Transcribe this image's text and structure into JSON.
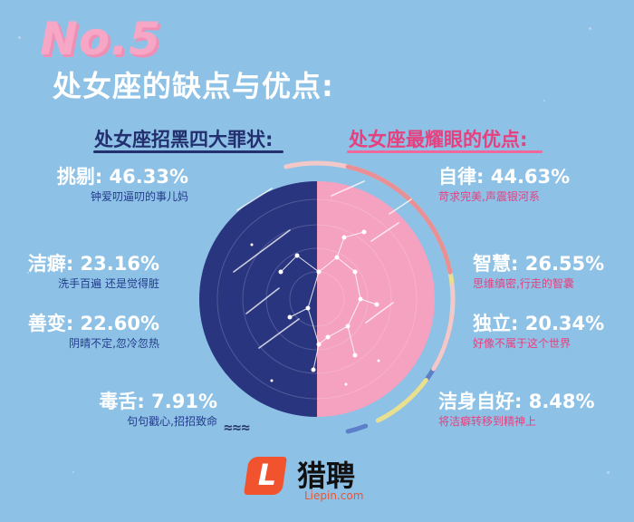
{
  "header": {
    "number": "No.5",
    "title": "处女座的缺点与优点:"
  },
  "sections": {
    "left_title": "处女座招黑四大罪状:",
    "right_title": "处女座最耀眼的优点:"
  },
  "chart_data": [
    {
      "type": "pie",
      "title": "处女座招黑四大罪状",
      "categories": [
        "挑剔",
        "洁癖",
        "善变",
        "毒舌"
      ],
      "values": [
        46.33,
        23.16,
        22.6,
        7.91
      ],
      "descriptions": [
        "钟爱叨逼叨的事儿妈",
        "洗手百遍 还是觉得脏",
        "阴晴不定,忽冷忽热",
        "句句戳心,招招致命"
      ],
      "value_labels": [
        "46.33%",
        "23.16%",
        "22.60%",
        "7.91%"
      ]
    },
    {
      "type": "pie",
      "title": "处女座最耀眼的优点",
      "categories": [
        "自律",
        "智慧",
        "独立",
        "洁身自好"
      ],
      "values": [
        44.63,
        26.55,
        20.34,
        8.48
      ],
      "descriptions": [
        "苛求完美,声震银河系",
        "思维缜密,行走的智囊",
        "好像不属于这个世界",
        "将洁癖转移到精神上"
      ],
      "value_labels": [
        "44.63%",
        "26.55%",
        "20.34%",
        "8.48%"
      ]
    }
  ],
  "colors": {
    "background": "#8ec1e6",
    "left_half": "#2a3580",
    "right_half": "#f5a1c0",
    "ring_segments": [
      "#e89095",
      "#f2c9c8",
      "#e8e090",
      "#5b7fc9",
      "#a9d9a0"
    ]
  },
  "logo": {
    "letter": "L",
    "name": "猎聘",
    "domain": "Liepin.com"
  }
}
